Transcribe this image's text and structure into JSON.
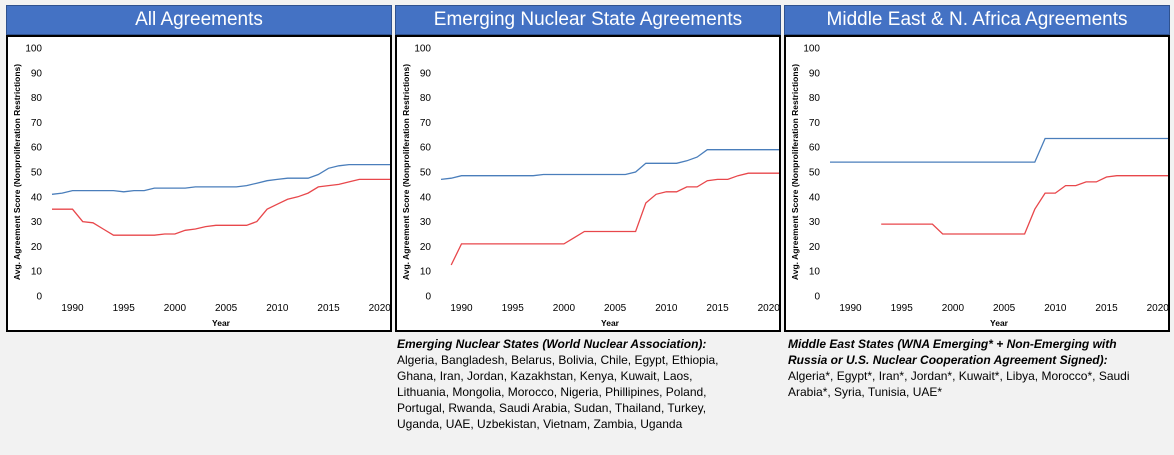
{
  "colors": {
    "series_a": "#4a7ebb",
    "series_b": "#e8474b",
    "header_bg": "#4472c4"
  },
  "notes": [
    {
      "heading": "Emerging Nuclear States (World Nuclear Association):",
      "body": " Algeria, Bangladesh, Belarus, Bolivia, Chile, Egypt, Ethiopia, Ghana, Iran, Jordan, Kazakhstan, Kenya, Kuwait, Laos, Lithuania, Mongolia, Morocco, Nigeria, Phillipines, Poland, Portugal, Rwanda, Saudi Arabia, Sudan, Thailand, Turkey, Uganda, UAE, Uzbekistan, Vietnam, Zambia, Uganda"
    },
    {
      "heading": "Middle East States (WNA Emerging* + Non-Emerging with Russia or U.S. Nuclear Cooperation Agreement Signed):",
      "body": " Algeria*, Egypt*, Iran*, Jordan*, Kuwait*, Libya, Morocco*, Saudi Arabia*, Syria, Tunisia, UAE*"
    }
  ],
  "chart_data": [
    {
      "type": "line",
      "title": "All Agreements",
      "xlabel": "Year",
      "ylabel": "Avg. Agreement Score (Nonproliferation Restrictions)",
      "xlim": [
        1988,
        2021
      ],
      "ylim": [
        0,
        100
      ],
      "xticks": [
        1990,
        1995,
        2000,
        2005,
        2010,
        2015,
        2020
      ],
      "yticks": [
        0,
        10,
        20,
        30,
        40,
        50,
        60,
        70,
        80,
        90,
        100
      ],
      "series": [
        {
          "name": "Series 1",
          "color": "#4a7ebb",
          "x": [
            1988,
            1989,
            1990,
            1991,
            1992,
            1993,
            1994,
            1995,
            1996,
            1997,
            1998,
            1999,
            2000,
            2001,
            2002,
            2003,
            2004,
            2005,
            2006,
            2007,
            2008,
            2009,
            2010,
            2011,
            2012,
            2013,
            2014,
            2015,
            2016,
            2017,
            2018,
            2019,
            2020,
            2021
          ],
          "y": [
            41,
            41.5,
            42.5,
            42.5,
            42.5,
            42.5,
            42.5,
            42,
            42.5,
            42.5,
            43.5,
            43.5,
            43.5,
            43.5,
            44,
            44,
            44,
            44,
            44,
            44.5,
            45.5,
            46.5,
            47,
            47.5,
            47.5,
            47.5,
            49,
            51.5,
            52.5,
            53,
            53,
            53,
            53,
            53
          ]
        },
        {
          "name": "Series 2",
          "color": "#e8474b",
          "x": [
            1988,
            1989,
            1990,
            1991,
            1992,
            1993,
            1994,
            1995,
            1996,
            1997,
            1998,
            1999,
            2000,
            2001,
            2002,
            2003,
            2004,
            2005,
            2006,
            2007,
            2008,
            2009,
            2010,
            2011,
            2012,
            2013,
            2014,
            2015,
            2016,
            2017,
            2018,
            2019,
            2020,
            2021
          ],
          "y": [
            35,
            35,
            35,
            30,
            29.5,
            27,
            24.5,
            24.5,
            24.5,
            24.5,
            24.5,
            25,
            25,
            26.5,
            27,
            28,
            28.5,
            28.5,
            28.5,
            28.5,
            30,
            35,
            37,
            39,
            40,
            41.5,
            44,
            44.5,
            45,
            46,
            47,
            47,
            47,
            47
          ]
        }
      ]
    },
    {
      "type": "line",
      "title": "Emerging Nuclear State Agreements",
      "xlabel": "Year",
      "ylabel": "Avg. Agreement Score (Nonproliferation Restrictions)",
      "xlim": [
        1988,
        2021
      ],
      "ylim": [
        0,
        100
      ],
      "xticks": [
        1990,
        1995,
        2000,
        2005,
        2010,
        2015,
        2020
      ],
      "yticks": [
        0,
        10,
        20,
        30,
        40,
        50,
        60,
        70,
        80,
        90,
        100
      ],
      "series": [
        {
          "name": "Series 1",
          "color": "#4a7ebb",
          "x": [
            1988,
            1989,
            1990,
            1991,
            1992,
            1993,
            1994,
            1995,
            1996,
            1997,
            1998,
            1999,
            2000,
            2001,
            2002,
            2003,
            2004,
            2005,
            2006,
            2007,
            2008,
            2009,
            2010,
            2011,
            2012,
            2013,
            2014,
            2015,
            2016,
            2017,
            2018,
            2019,
            2020,
            2021
          ],
          "y": [
            47,
            47.5,
            48.5,
            48.5,
            48.5,
            48.5,
            48.5,
            48.5,
            48.5,
            48.5,
            49,
            49,
            49,
            49,
            49,
            49,
            49,
            49,
            49,
            50,
            53.5,
            53.5,
            53.5,
            53.5,
            54.5,
            56,
            59,
            59,
            59,
            59,
            59,
            59,
            59,
            59
          ]
        },
        {
          "name": "Series 2",
          "color": "#e8474b",
          "x": [
            1989,
            1990,
            1991,
            1992,
            1993,
            1994,
            1995,
            1996,
            1997,
            1998,
            1999,
            2000,
            2001,
            2002,
            2003,
            2004,
            2005,
            2006,
            2007,
            2008,
            2009,
            2010,
            2011,
            2012,
            2013,
            2014,
            2015,
            2016,
            2017,
            2018,
            2019,
            2020,
            2021
          ],
          "y": [
            12.5,
            21,
            21,
            21,
            21,
            21,
            21,
            21,
            21,
            21,
            21,
            21,
            23.5,
            26,
            26,
            26,
            26,
            26,
            26,
            37.5,
            41,
            42,
            42,
            44,
            44,
            46.5,
            47,
            47,
            48.5,
            49.5,
            49.5,
            49.5,
            49.5
          ]
        }
      ]
    },
    {
      "type": "line",
      "title": "Middle East & N. Africa Agreements",
      "xlabel": "Year",
      "ylabel": "Avg. Agreement Score (Nonproliferation Restrictions)",
      "xlim": [
        1988,
        2021
      ],
      "ylim": [
        0,
        100
      ],
      "xticks": [
        1990,
        1995,
        2000,
        2005,
        2010,
        2015,
        2020
      ],
      "yticks": [
        0,
        10,
        20,
        30,
        40,
        50,
        60,
        70,
        80,
        90,
        100
      ],
      "series": [
        {
          "name": "Series 1",
          "color": "#4a7ebb",
          "x": [
            1988,
            1989,
            1990,
            1991,
            1992,
            1993,
            1994,
            1995,
            1996,
            1997,
            1998,
            1999,
            2000,
            2001,
            2002,
            2003,
            2004,
            2005,
            2006,
            2007,
            2008,
            2009,
            2010,
            2011,
            2012,
            2013,
            2014,
            2015,
            2016,
            2017,
            2018,
            2019,
            2020,
            2021
          ],
          "y": [
            54,
            54,
            54,
            54,
            54,
            54,
            54,
            54,
            54,
            54,
            54,
            54,
            54,
            54,
            54,
            54,
            54,
            54,
            54,
            54,
            54,
            63.5,
            63.5,
            63.5,
            63.5,
            63.5,
            63.5,
            63.5,
            63.5,
            63.5,
            63.5,
            63.5,
            63.5,
            63.5
          ]
        },
        {
          "name": "Series 2",
          "color": "#e8474b",
          "x": [
            1993,
            1994,
            1995,
            1996,
            1997,
            1998,
            1999,
            2000,
            2001,
            2002,
            2003,
            2004,
            2005,
            2006,
            2007,
            2008,
            2009,
            2010,
            2011,
            2012,
            2013,
            2014,
            2015,
            2016,
            2017,
            2018,
            2019,
            2020,
            2021
          ],
          "y": [
            29,
            29,
            29,
            29,
            29,
            29,
            25,
            25,
            25,
            25,
            25,
            25,
            25,
            25,
            25,
            35,
            41.5,
            41.5,
            44.5,
            44.5,
            46,
            46,
            48,
            48.5,
            48.5,
            48.5,
            48.5,
            48.5,
            48.5
          ]
        }
      ]
    }
  ]
}
